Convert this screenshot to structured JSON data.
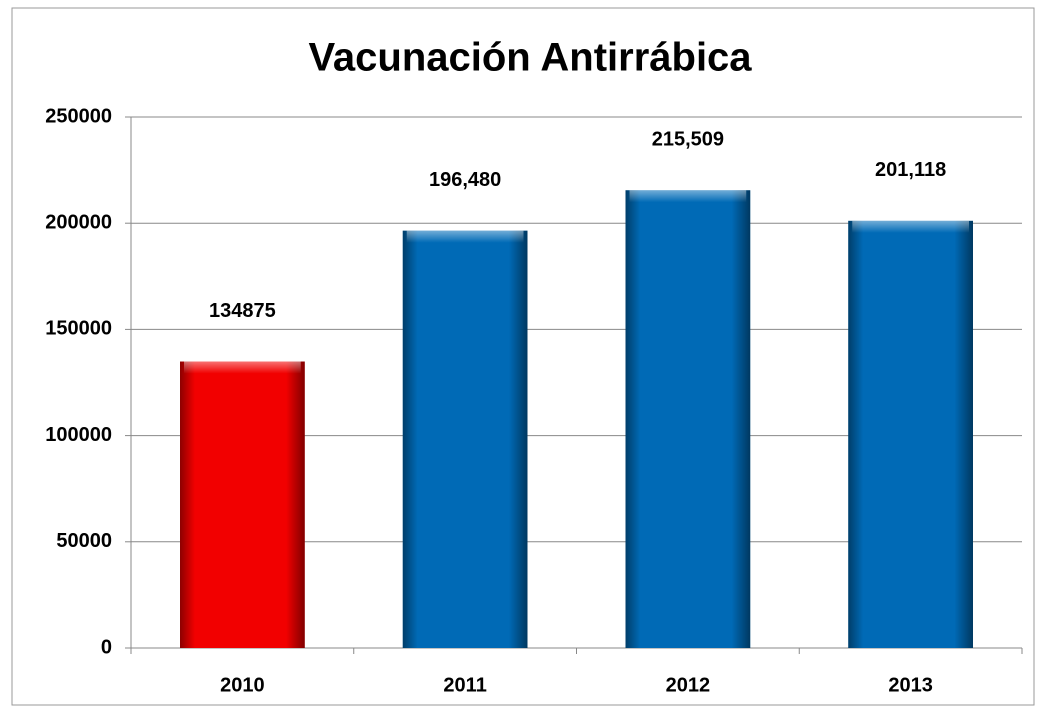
{
  "chart_data": {
    "type": "bar",
    "title": "Vacunación Antirrábica",
    "categories": [
      "2010",
      "2011",
      "2012",
      "2013"
    ],
    "values": [
      134875,
      196480,
      215509,
      201118
    ],
    "value_labels": [
      "134875",
      "196,480",
      "215,509",
      "201,118"
    ],
    "colors": [
      "#ff0000",
      "#0070c0",
      "#0070c0",
      "#0070c0"
    ],
    "ylim": [
      0,
      250000
    ],
    "yticks": [
      0,
      50000,
      100000,
      150000,
      200000,
      250000
    ],
    "grid": true
  }
}
